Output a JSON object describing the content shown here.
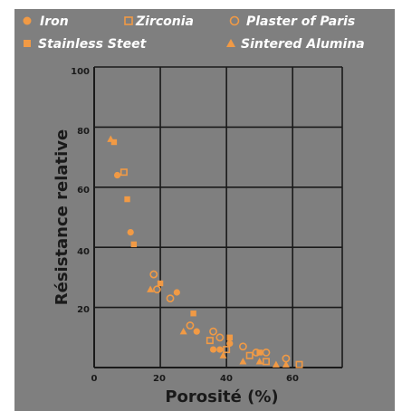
{
  "chart_data": {
    "type": "scatter",
    "title": "",
    "xlabel": "Porosité (%)",
    "ylabel": "Résistance relative",
    "xlim": [
      0,
      75
    ],
    "ylim": [
      0,
      100
    ],
    "x_ticks": [
      "0",
      "20",
      "40",
      "60"
    ],
    "y_ticks": [
      "20",
      "40",
      "60",
      "80",
      "100"
    ],
    "grid": true,
    "legend_position": "top",
    "colors": {
      "background": "#7f7f7f",
      "marker": "#f19a45",
      "grid": "#1a1a1a",
      "page": "#ffffff"
    },
    "series": [
      {
        "name": "Iron",
        "marker": "filled-circle",
        "points": [
          [
            7,
            64
          ],
          [
            11,
            45
          ],
          [
            25,
            25
          ],
          [
            31,
            12
          ],
          [
            36,
            6
          ],
          [
            38,
            6
          ],
          [
            41,
            8
          ]
        ]
      },
      {
        "name": "Zirconia",
        "marker": "open-square",
        "points": [
          [
            9,
            65
          ],
          [
            35,
            9
          ],
          [
            40,
            6
          ],
          [
            47,
            4
          ],
          [
            52,
            2
          ],
          [
            62,
            1
          ]
        ]
      },
      {
        "name": "Plaster of Paris",
        "marker": "open-circle",
        "points": [
          [
            18,
            31
          ],
          [
            19,
            26
          ],
          [
            23,
            23
          ],
          [
            29,
            14
          ],
          [
            36,
            12
          ],
          [
            38,
            10
          ],
          [
            45,
            7
          ],
          [
            49,
            5
          ],
          [
            52,
            5
          ],
          [
            58,
            3
          ]
        ]
      },
      {
        "name": "Stainless Steet",
        "marker": "filled-square",
        "points": [
          [
            6,
            75
          ],
          [
            10,
            56
          ],
          [
            12,
            41
          ],
          [
            20,
            28
          ],
          [
            30,
            18
          ],
          [
            41,
            10
          ],
          [
            50,
            5
          ]
        ]
      },
      {
        "name": "Sintered Alumina",
        "marker": "filled-triangle",
        "points": [
          [
            5,
            76
          ],
          [
            17,
            26
          ],
          [
            27,
            12
          ],
          [
            39,
            4
          ],
          [
            45,
            2
          ],
          [
            50,
            2
          ],
          [
            55,
            1
          ],
          [
            58,
            1
          ]
        ]
      }
    ]
  }
}
